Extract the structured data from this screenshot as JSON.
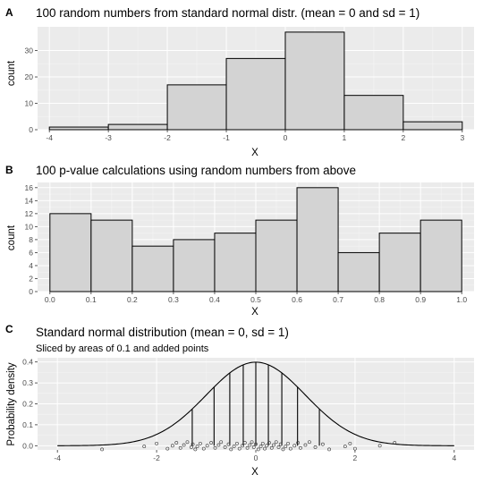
{
  "chart_data": [
    {
      "panel": "A",
      "type": "bar",
      "title": "100 random numbers from standard normal distr. (mean = 0 and sd = 1)",
      "xlabel": "X",
      "ylabel": "count",
      "bins": [
        {
          "x0": -4,
          "x1": -3,
          "count": 1
        },
        {
          "x0": -3,
          "x1": -2,
          "count": 2
        },
        {
          "x0": -2,
          "x1": -1,
          "count": 17
        },
        {
          "x0": -1,
          "x1": 0,
          "count": 27
        },
        {
          "x0": 0,
          "x1": 1,
          "count": 37
        },
        {
          "x0": 1,
          "x1": 2,
          "count": 13
        },
        {
          "x0": 2,
          "x1": 3,
          "count": 3
        }
      ],
      "xlim": [
        -4.2,
        3.2
      ],
      "ylim": [
        0,
        39
      ],
      "xticks": [
        -4,
        -3,
        -2,
        -1,
        0,
        1,
        2,
        3
      ],
      "yticks": [
        0,
        10,
        20,
        30
      ],
      "grid": true
    },
    {
      "panel": "B",
      "type": "bar",
      "title": "100 p-value calculations using random numbers from above",
      "xlabel": "X",
      "ylabel": "count",
      "bins": [
        {
          "x0": 0.0,
          "x1": 0.1,
          "count": 12
        },
        {
          "x0": 0.1,
          "x1": 0.2,
          "count": 11
        },
        {
          "x0": 0.2,
          "x1": 0.3,
          "count": 7
        },
        {
          "x0": 0.3,
          "x1": 0.4,
          "count": 8
        },
        {
          "x0": 0.4,
          "x1": 0.5,
          "count": 9
        },
        {
          "x0": 0.5,
          "x1": 0.6,
          "count": 11
        },
        {
          "x0": 0.6,
          "x1": 0.7,
          "count": 16
        },
        {
          "x0": 0.7,
          "x1": 0.8,
          "count": 6
        },
        {
          "x0": 0.8,
          "x1": 0.9,
          "count": 9
        },
        {
          "x0": 0.9,
          "x1": 1.0,
          "count": 11
        }
      ],
      "xlim": [
        -0.03,
        1.03
      ],
      "ylim": [
        0,
        16.8
      ],
      "xticks": [
        0.0,
        0.1,
        0.2,
        0.3,
        0.4,
        0.5,
        0.6,
        0.7,
        0.8,
        0.9,
        1.0
      ],
      "xtick_labels": [
        "0.0",
        "0.1",
        "0.2",
        "0.3",
        "0.4",
        "0.5",
        "0.6",
        "0.7",
        "0.8",
        "0.9",
        "1.0"
      ],
      "yticks": [
        0,
        2,
        4,
        6,
        8,
        10,
        12,
        14,
        16
      ],
      "grid": true
    },
    {
      "panel": "C",
      "type": "line",
      "title": "Standard normal distribution (mean = 0, sd = 1)",
      "subtitle": "Sliced by areas of 0.1 and added points",
      "xlabel": "X",
      "ylabel": "Probability density",
      "curve": {
        "mean": 0,
        "sd": 1,
        "from": -4,
        "to": 4
      },
      "slice_positions": [
        -1.2816,
        -0.8416,
        -0.5244,
        -0.2533,
        0.0,
        0.2533,
        0.5244,
        0.8416,
        1.2816
      ],
      "points_x": [
        -3.1,
        -2.25,
        -2.0,
        -1.78,
        -1.68,
        -1.6,
        -1.52,
        -1.45,
        -1.38,
        -1.3,
        -1.27,
        -1.22,
        -1.18,
        -1.12,
        -1.05,
        -0.98,
        -0.9,
        -0.82,
        -0.75,
        -0.7,
        -0.62,
        -0.55,
        -0.5,
        -0.44,
        -0.38,
        -0.33,
        -0.27,
        -0.22,
        -0.17,
        -0.12,
        -0.08,
        -0.04,
        0.0,
        0.05,
        0.1,
        0.14,
        0.18,
        0.22,
        0.27,
        0.32,
        0.36,
        0.41,
        0.46,
        0.5,
        0.55,
        0.6,
        0.65,
        0.7,
        0.78,
        0.85,
        0.9,
        1.0,
        1.08,
        1.2,
        1.35,
        1.48,
        1.8,
        1.9,
        2.0,
        2.5,
        2.8
      ],
      "xlim": [
        -4.4,
        4.4
      ],
      "ylim": [
        -0.02,
        0.42
      ],
      "xticks": [
        -4,
        -2,
        0,
        2,
        4
      ],
      "yticks": [
        0.0,
        0.1,
        0.2,
        0.3,
        0.4
      ],
      "ytick_labels": [
        "0.0",
        "0.1",
        "0.2",
        "0.3",
        "0.4"
      ],
      "grid": true
    }
  ]
}
